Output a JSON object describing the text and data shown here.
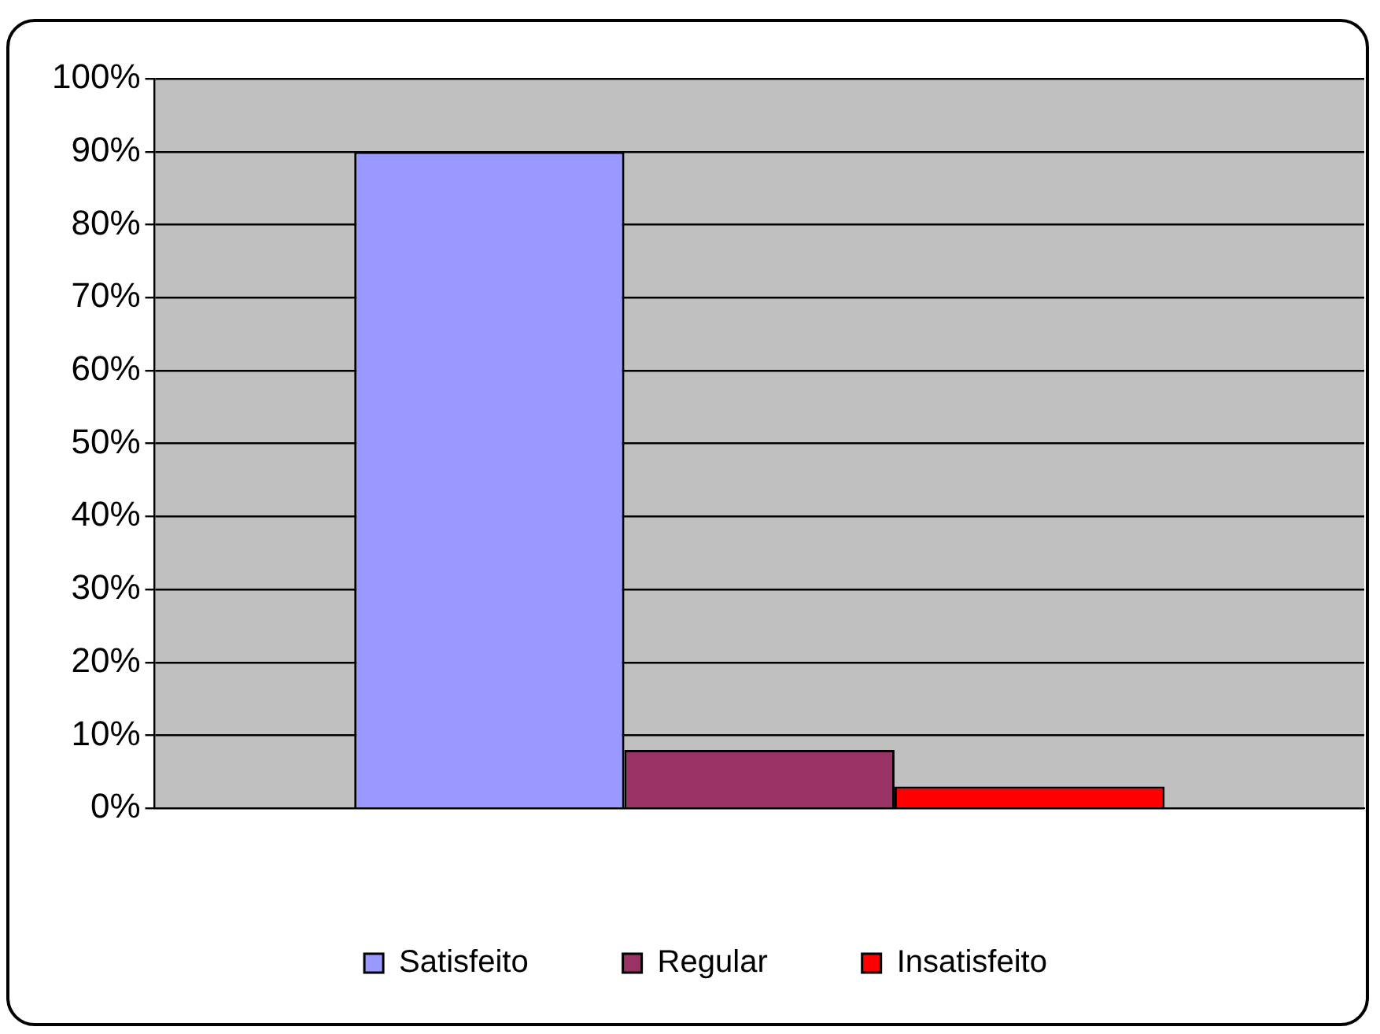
{
  "chart_data": {
    "type": "bar",
    "categories": [
      null
    ],
    "series": [
      {
        "name": "Satisfeito",
        "color": "#9999ff",
        "values": [
          90
        ]
      },
      {
        "name": "Regular",
        "color": "#993366",
        "values": [
          8
        ]
      },
      {
        "name": "Insatisfeito",
        "color": "#ff0000",
        "values": [
          3
        ]
      }
    ],
    "ylim": [
      0,
      100
    ],
    "yticks": [
      {
        "value": 0,
        "label": "0%"
      },
      {
        "value": 10,
        "label": "10%"
      },
      {
        "value": 20,
        "label": "20%"
      },
      {
        "value": 30,
        "label": "30%"
      },
      {
        "value": 40,
        "label": "40%"
      },
      {
        "value": 50,
        "label": "50%"
      },
      {
        "value": 60,
        "label": "60%"
      },
      {
        "value": 70,
        "label": "70%"
      },
      {
        "value": 80,
        "label": "80%"
      },
      {
        "value": 90,
        "label": "90%"
      },
      {
        "value": 100,
        "label": "100%"
      }
    ],
    "grid": "y",
    "legend": "bottom"
  }
}
